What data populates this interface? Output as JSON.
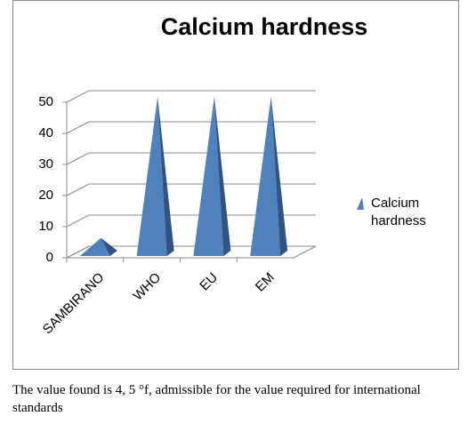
{
  "chart_data": {
    "type": "pyramid",
    "title": "Calcium hardness",
    "categories": [
      "SAMBIRANO",
      "WHO",
      "EU",
      "EM"
    ],
    "series": [
      {
        "name": "Calcium hardness",
        "color": "#4f81bd",
        "values": [
          4.5,
          50,
          50,
          50
        ]
      }
    ],
    "ylim": [
      0,
      50
    ],
    "yticks": [
      0,
      10,
      20,
      30,
      40,
      50
    ],
    "grid": true,
    "legend": "right"
  },
  "caption": "The value found is 4, 5 °f, admissible for the value required for international standards"
}
